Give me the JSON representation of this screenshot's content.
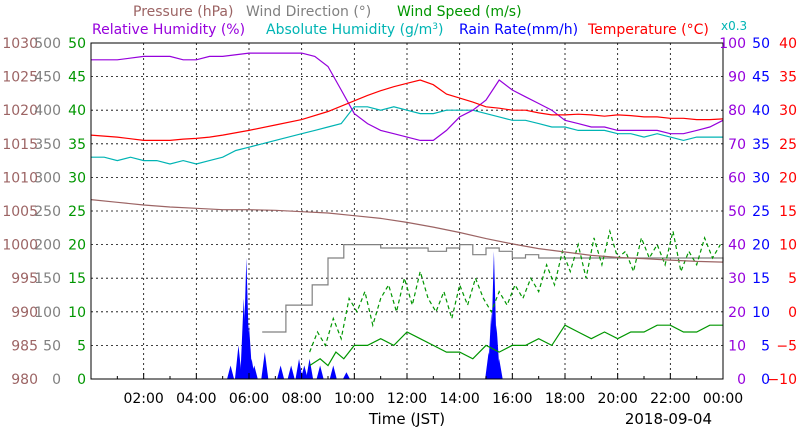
{
  "chart_data": {
    "type": "line",
    "xlabel": "Time (JST)",
    "date_label": "2018-09-04",
    "abs_humidity_scale_note": "x0.3",
    "x_ticks": [
      "02:00",
      "04:00",
      "06:00",
      "08:00",
      "10:00",
      "12:00",
      "14:00",
      "16:00",
      "18:00",
      "20:00",
      "22:00",
      "00:00"
    ],
    "x_range_hours": [
      0,
      24
    ],
    "legend": [
      {
        "key": "pressure",
        "label": "Pressure (hPa)",
        "color": "#9c6464"
      },
      {
        "key": "wind_dir",
        "label": "Wind Direction (°)",
        "color": "#808080"
      },
      {
        "key": "wind_speed",
        "label": "Wind Speed (m/s)",
        "color": "#009600"
      },
      {
        "key": "rel_humidity",
        "label": "Relative Humidity (%)",
        "color": "#9600dc"
      },
      {
        "key": "abs_humidity",
        "label_prefix": "Absolute Humidity (g/m",
        "label_sup": "3",
        "label_suffix": ")",
        "color": "#00b4b4"
      },
      {
        "key": "rain_rate",
        "label": "Rain Rate(mm/h)",
        "color": "#0000ff"
      },
      {
        "key": "temperature",
        "label": "Temperature (°C)",
        "color": "#ff0000"
      }
    ],
    "axes": {
      "pressure": {
        "range": [
          980,
          1030
        ],
        "ticks": [
          "980",
          "985",
          "990",
          "995",
          "1000",
          "1005",
          "1010",
          "1015",
          "1020",
          "1025",
          "1030"
        ],
        "color": "#9c6464"
      },
      "wind_dir": {
        "range": [
          0,
          500
        ],
        "ticks": [
          "0",
          "50",
          "100",
          "150",
          "200",
          "250",
          "300",
          "350",
          "400",
          "450",
          "500"
        ],
        "color": "#808080"
      },
      "wind_speed": {
        "range": [
          0,
          50
        ],
        "ticks": [
          "0",
          "5",
          "10",
          "15",
          "20",
          "25",
          "30",
          "35",
          "40",
          "45",
          "50"
        ],
        "color": "#009600"
      },
      "rel_humidity": {
        "range": [
          0,
          100
        ],
        "ticks": [
          "0",
          "10",
          "20",
          "30",
          "40",
          "50",
          "60",
          "70",
          "80",
          "90",
          "100"
        ],
        "color": "#9600dc"
      },
      "rain_rate": {
        "range": [
          0,
          50
        ],
        "ticks": [
          "0",
          "5",
          "10",
          "15",
          "20",
          "25",
          "30",
          "35",
          "40",
          "45",
          "50"
        ],
        "color": "#0000ff"
      },
      "temperature": {
        "range": [
          -10,
          40
        ],
        "ticks": [
          "−10",
          "−5",
          "0",
          "5",
          "10",
          "15",
          "20",
          "25",
          "30",
          "35",
          "40"
        ],
        "color": "#ff0000"
      }
    },
    "series": [
      {
        "key": "pressure",
        "name": "Pressure (hPa)",
        "x": [
          0,
          1,
          2,
          3,
          4,
          5,
          6,
          7,
          8,
          9,
          10,
          11,
          12,
          13,
          14,
          15,
          16,
          17,
          18,
          19,
          20,
          21,
          22,
          23,
          24
        ],
        "values": [
          1006.7,
          1006.3,
          1005.9,
          1005.6,
          1005.4,
          1005.2,
          1005.2,
          1005.1,
          1004.9,
          1004.7,
          1004.3,
          1003.9,
          1003.3,
          1002.6,
          1001.8,
          1000.9,
          1000.1,
          999.4,
          998.9,
          998.4,
          998.1,
          997.9,
          997.7,
          997.5,
          997.4
        ]
      },
      {
        "key": "wind_dir",
        "name": "Wind Direction (°)",
        "x": [
          6.5,
          7.3,
          7.4,
          8.3,
          8.4,
          8.9,
          9.0,
          9.5,
          9.6,
          10.0,
          11.0,
          12.0,
          12.8,
          13.5,
          14.0,
          14.5,
          15.0,
          15.5,
          16.0,
          16.5,
          17.0,
          17.5,
          18.0,
          18.5,
          19.0,
          19.5,
          20.0,
          20.5,
          21.0,
          21.5,
          22.0,
          22.5,
          23.0,
          23.5,
          24.0
        ],
        "values": [
          70,
          70,
          110,
          110,
          140,
          140,
          180,
          180,
          200,
          200,
          195,
          195,
          190,
          195,
          200,
          185,
          195,
          190,
          180,
          185,
          180,
          180,
          180,
          180,
          180,
          180,
          180,
          180,
          180,
          180,
          180,
          180,
          180,
          180,
          175
        ]
      },
      {
        "key": "wind_speed",
        "name": "Wind Speed (m/s)",
        "x": [
          8.3,
          8.7,
          9.0,
          9.3,
          9.6,
          10.0,
          10.5,
          11.0,
          11.5,
          12.0,
          12.5,
          13.0,
          13.5,
          14.0,
          14.5,
          15.0,
          15.5,
          16.0,
          16.5,
          17.0,
          17.5,
          18.0,
          18.5,
          19.0,
          19.5,
          20.0,
          20.5,
          21.0,
          21.5,
          22.0,
          22.5,
          23.0,
          23.5,
          24.0
        ],
        "values": [
          2,
          3,
          2,
          4,
          3,
          5,
          5,
          6,
          5,
          7,
          6,
          5,
          4,
          4,
          3,
          5,
          4,
          5,
          5,
          6,
          5,
          8,
          7,
          6,
          7,
          6,
          7,
          7,
          8,
          8,
          7,
          7,
          8,
          8
        ]
      },
      {
        "key": "wind_gust",
        "name": "",
        "x": [
          8.3,
          8.6,
          8.9,
          9.2,
          9.5,
          9.8,
          10.1,
          10.4,
          10.7,
          11.0,
          11.3,
          11.6,
          11.9,
          12.2,
          12.5,
          12.8,
          13.1,
          13.4,
          13.7,
          14.0,
          14.3,
          14.6,
          14.9,
          15.2,
          15.5,
          15.8,
          16.1,
          16.4,
          16.7,
          17.0,
          17.3,
          17.6,
          17.9,
          18.2,
          18.5,
          18.8,
          19.1,
          19.4,
          19.7,
          20.0,
          20.3,
          20.6,
          20.9,
          21.2,
          21.5,
          21.8,
          22.1,
          22.4,
          22.7,
          23.0,
          23.3,
          23.6,
          23.9
        ],
        "values": [
          4,
          7,
          5,
          9,
          6,
          12,
          10,
          13,
          8,
          12,
          14,
          10,
          15,
          11,
          16,
          12,
          10,
          13,
          9,
          14,
          11,
          15,
          12,
          10,
          13,
          11,
          14,
          12,
          15,
          13,
          17,
          14,
          19,
          16,
          20,
          15,
          21,
          17,
          22,
          18,
          19,
          16,
          21,
          18,
          20,
          17,
          22,
          16,
          19,
          17,
          21,
          18,
          20
        ]
      },
      {
        "key": "rel_humidity",
        "name": "Relative Humidity (%)",
        "x": [
          0,
          1,
          2,
          3,
          3.5,
          4,
          4.5,
          5,
          6,
          7,
          8,
          8.5,
          9,
          9.5,
          10,
          10.5,
          11,
          11.5,
          12,
          12.5,
          13,
          13.5,
          14,
          14.5,
          15,
          15.5,
          16,
          16.5,
          17,
          17.5,
          18,
          18.5,
          19,
          19.5,
          20,
          20.5,
          21,
          21.5,
          22,
          22.5,
          23,
          23.5,
          24
        ],
        "values": [
          95,
          95,
          96,
          96,
          95,
          95,
          96,
          96,
          97,
          97,
          97,
          96,
          93,
          86,
          79,
          76,
          74,
          73,
          72,
          71,
          71,
          74,
          78,
          80,
          83,
          89,
          86,
          84,
          82,
          80,
          77,
          76,
          75,
          75,
          74,
          74,
          74,
          74,
          73,
          73,
          74,
          75,
          77
        ]
      },
      {
        "key": "abs_humidity",
        "name": "Absolute Humidity (g/m³)",
        "x": [
          0,
          0.5,
          1,
          1.5,
          2,
          2.5,
          3,
          3.5,
          4,
          4.5,
          5,
          5.5,
          6,
          6.5,
          7,
          7.5,
          8,
          8.5,
          9,
          9.5,
          10,
          10.5,
          11,
          11.5,
          12,
          12.5,
          13,
          13.5,
          14,
          14.5,
          15,
          15.5,
          16,
          16.5,
          17,
          17.5,
          18,
          18.5,
          19,
          19.5,
          20,
          20.5,
          21,
          21.5,
          22,
          22.5,
          23,
          23.5,
          24
        ],
        "values": [
          66,
          66,
          65,
          66,
          65,
          65,
          64,
          65,
          64,
          65,
          66,
          68,
          69,
          70,
          71,
          72,
          73,
          74,
          75,
          76,
          81,
          81,
          80,
          81,
          80,
          79,
          79,
          80,
          80,
          80,
          79,
          78,
          77,
          77,
          76,
          75,
          75,
          74,
          74,
          74,
          73,
          73,
          72,
          73,
          72,
          71,
          72,
          72,
          72
        ]
      },
      {
        "key": "rain_rate",
        "name": "Rain Rate(mm/h)",
        "x": [
          5.3,
          5.6,
          5.8,
          5.9,
          6.0,
          6.1,
          6.2,
          6.6,
          7.2,
          7.6,
          7.9,
          8.1,
          8.3,
          8.7,
          9.2,
          9.7,
          15.1,
          15.2,
          15.3,
          15.4,
          15.5
        ],
        "values": [
          2,
          5,
          12,
          18,
          8,
          3,
          2,
          4,
          2,
          2,
          3,
          2,
          3,
          2,
          2,
          1,
          4,
          10,
          19,
          8,
          3
        ]
      },
      {
        "key": "temperature",
        "name": "Temperature (°C)",
        "x": [
          0,
          1,
          2,
          3,
          3.5,
          4,
          4.5,
          5,
          6,
          7,
          8,
          9,
          10,
          10.5,
          11,
          11.5,
          12,
          12.5,
          13,
          13.5,
          14,
          14.5,
          15,
          15.5,
          16,
          16.5,
          17,
          17.5,
          18,
          18.5,
          19,
          19.5,
          20,
          20.5,
          21,
          21.5,
          22,
          22.5,
          23,
          23.5,
          24
        ],
        "values": [
          26.3,
          26.0,
          25.5,
          25.5,
          25.7,
          25.8,
          26.0,
          26.3,
          27.0,
          27.8,
          28.6,
          29.8,
          31.4,
          32.2,
          32.9,
          33.5,
          34.0,
          34.5,
          33.8,
          32.4,
          31.8,
          31.2,
          30.5,
          30.3,
          30.0,
          30.0,
          29.6,
          29.3,
          29.3,
          29.4,
          29.3,
          29.1,
          29.3,
          29.2,
          29.0,
          29.0,
          28.8,
          28.8,
          28.6,
          28.6,
          28.7
        ]
      }
    ]
  }
}
